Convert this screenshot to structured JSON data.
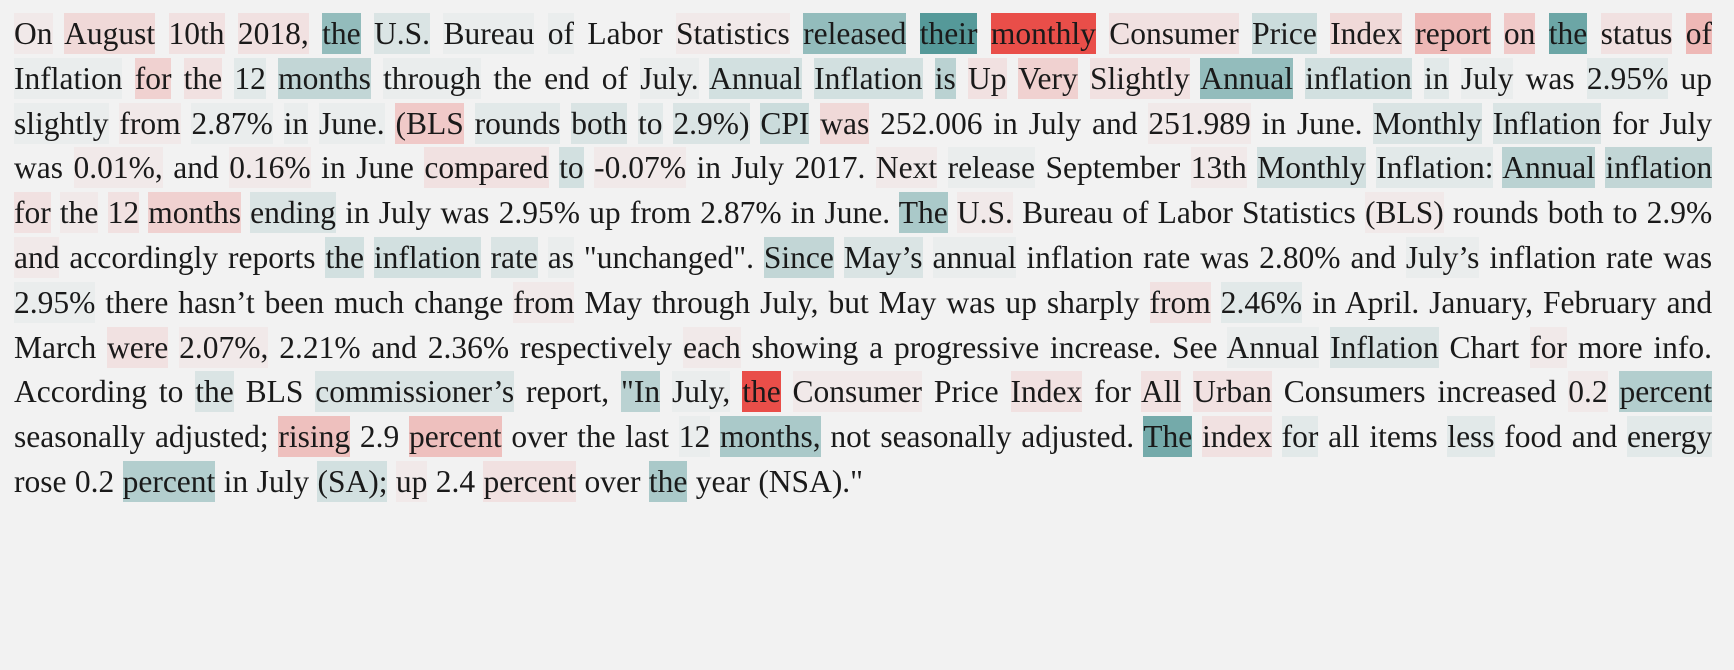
{
  "document": {
    "tokens": [
      {
        "t": "On",
        "w": -0.05
      },
      {
        "t": "August",
        "w": -0.15
      },
      {
        "t": "10th",
        "w": -0.1
      },
      {
        "t": "2018,",
        "w": -0.1
      },
      {
        "t": "the",
        "w": 0.6
      },
      {
        "t": "U.S.",
        "w": 0.15
      },
      {
        "t": "Bureau",
        "w": 0.05
      },
      {
        "t": "of",
        "w": 0.05
      },
      {
        "t": "Labor",
        "w": 0
      },
      {
        "t": "Statistics",
        "w": -0.05
      },
      {
        "t": "released",
        "w": 0.6
      },
      {
        "t": "their",
        "w": 1.0
      },
      {
        "t": "monthly",
        "w": -1.0
      },
      {
        "t": "Consumer",
        "w": -0.1
      },
      {
        "t": "Price",
        "w": 0.25
      },
      {
        "t": "Index",
        "w": -0.15
      },
      {
        "t": "report",
        "w": -0.35
      },
      {
        "t": "on",
        "w": -0.25
      },
      {
        "t": "the",
        "w": 0.85
      },
      {
        "t": "status",
        "w": -0.1
      },
      {
        "t": "of",
        "w": -0.35
      },
      {
        "t": "Inflation",
        "w": 0.05
      },
      {
        "t": "for",
        "w": -0.2
      },
      {
        "t": "the",
        "w": -0.1
      },
      {
        "t": "12",
        "w": 0.1
      },
      {
        "t": "months",
        "w": 0.3
      },
      {
        "t": "through",
        "w": 0.05
      },
      {
        "t": "the",
        "w": 0
      },
      {
        "t": "end",
        "w": 0
      },
      {
        "t": "of",
        "w": 0
      },
      {
        "t": "July.",
        "w": 0.05
      },
      {
        "t": "Annual",
        "w": 0.2
      },
      {
        "t": "Inflation",
        "w": 0.2
      },
      {
        "t": "is",
        "w": 0.35
      },
      {
        "t": "Up",
        "w": -0.1
      },
      {
        "t": "Very",
        "w": -0.2
      },
      {
        "t": "Slightly",
        "w": -0.1
      },
      {
        "t": "Annual",
        "w": 0.6
      },
      {
        "t": "inflation",
        "w": 0.2
      },
      {
        "t": "in",
        "w": 0.1
      },
      {
        "t": "July",
        "w": 0.05
      },
      {
        "t": "was",
        "w": 0
      },
      {
        "t": "2.95%",
        "w": 0.1
      },
      {
        "t": "up",
        "w": 0
      },
      {
        "t": "slightly",
        "w": 0.05
      },
      {
        "t": "from",
        "w": -0.05
      },
      {
        "t": "2.87%",
        "w": 0.05
      },
      {
        "t": "in",
        "w": 0.05
      },
      {
        "t": "June.",
        "w": 0.05
      },
      {
        "t": "(BLS",
        "w": -0.25
      },
      {
        "t": "rounds",
        "w": 0.1
      },
      {
        "t": "both",
        "w": 0.15
      },
      {
        "t": "to",
        "w": 0.1
      },
      {
        "t": "2.9%)",
        "w": 0.15
      },
      {
        "t": "CPI",
        "w": 0.25
      },
      {
        "t": "was",
        "w": -0.15
      },
      {
        "t": "252.006",
        "w": 0
      },
      {
        "t": "in",
        "w": 0
      },
      {
        "t": "July",
        "w": 0
      },
      {
        "t": "and",
        "w": 0
      },
      {
        "t": "251.989",
        "w": -0.05
      },
      {
        "t": "in",
        "w": 0
      },
      {
        "t": "June.",
        "w": 0
      },
      {
        "t": "Monthly",
        "w": 0.15
      },
      {
        "t": "Inflation",
        "w": 0.15
      },
      {
        "t": "for",
        "w": 0
      },
      {
        "t": "July",
        "w": 0
      },
      {
        "t": "was",
        "w": 0
      },
      {
        "t": "0.01%,",
        "w": -0.05
      },
      {
        "t": "and",
        "w": 0
      },
      {
        "t": "0.16%",
        "w": -0.05
      },
      {
        "t": "in",
        "w": 0
      },
      {
        "t": "June",
        "w": 0
      },
      {
        "t": "compared",
        "w": -0.1
      },
      {
        "t": "to",
        "w": 0.2
      },
      {
        "t": "-0.07%",
        "w": -0.05
      },
      {
        "t": "in",
        "w": 0
      },
      {
        "t": "July",
        "w": 0
      },
      {
        "t": "2017.",
        "w": 0
      },
      {
        "t": "Next",
        "w": -0.05
      },
      {
        "t": "release",
        "w": 0.05
      },
      {
        "t": "September",
        "w": 0
      },
      {
        "t": "13th",
        "w": -0.05
      },
      {
        "t": "Monthly",
        "w": 0.2
      },
      {
        "t": "Inflation:",
        "w": 0.1
      },
      {
        "t": "Annual",
        "w": 0.35
      },
      {
        "t": "inflation",
        "w": 0.3
      },
      {
        "t": "for",
        "w": -0.1
      },
      {
        "t": "the",
        "w": -0.05
      },
      {
        "t": "12",
        "w": -0.1
      },
      {
        "t": "months",
        "w": -0.2
      },
      {
        "t": "ending",
        "w": 0.15
      },
      {
        "t": "in",
        "w": 0
      },
      {
        "t": "July",
        "w": 0
      },
      {
        "t": "was",
        "w": 0
      },
      {
        "t": "2.95%",
        "w": 0
      },
      {
        "t": "up",
        "w": 0
      },
      {
        "t": "from",
        "w": 0
      },
      {
        "t": "2.87%",
        "w": 0
      },
      {
        "t": "in",
        "w": 0
      },
      {
        "t": "June.",
        "w": 0
      },
      {
        "t": "The",
        "w": 0.45
      },
      {
        "t": "U.S.",
        "w": -0.05
      },
      {
        "t": "Bureau",
        "w": 0
      },
      {
        "t": "of",
        "w": 0
      },
      {
        "t": "Labor",
        "w": 0
      },
      {
        "t": "Statistics",
        "w": 0
      },
      {
        "t": "(BLS)",
        "w": -0.05
      },
      {
        "t": "rounds",
        "w": 0
      },
      {
        "t": "both",
        "w": 0
      },
      {
        "t": "to",
        "w": 0
      },
      {
        "t": "2.9%",
        "w": 0
      },
      {
        "t": "and",
        "w": -0.05
      },
      {
        "t": "accordingly",
        "w": 0
      },
      {
        "t": "reports",
        "w": 0
      },
      {
        "t": "the",
        "w": 0.2
      },
      {
        "t": "inflation",
        "w": 0.2
      },
      {
        "t": "rate",
        "w": 0.15
      },
      {
        "t": "as",
        "w": 0.05
      },
      {
        "t": "\"unchanged\".",
        "w": 0
      },
      {
        "t": "Since",
        "w": 0.3
      },
      {
        "t": "May’s",
        "w": 0.15
      },
      {
        "t": "annual",
        "w": 0.05
      },
      {
        "t": "inflation",
        "w": 0
      },
      {
        "t": "rate",
        "w": 0
      },
      {
        "t": "was",
        "w": 0
      },
      {
        "t": "2.80%",
        "w": 0
      },
      {
        "t": "and",
        "w": 0
      },
      {
        "t": "July’s",
        "w": 0.05
      },
      {
        "t": "inflation",
        "w": 0
      },
      {
        "t": "rate",
        "w": 0
      },
      {
        "t": "was",
        "w": 0
      },
      {
        "t": "2.95%",
        "w": 0.05
      },
      {
        "t": "there",
        "w": 0
      },
      {
        "t": "hasn’t",
        "w": 0
      },
      {
        "t": "been",
        "w": 0
      },
      {
        "t": "much",
        "w": 0
      },
      {
        "t": "change",
        "w": 0
      },
      {
        "t": "from",
        "w": -0.05
      },
      {
        "t": "May",
        "w": 0
      },
      {
        "t": "through",
        "w": 0
      },
      {
        "t": "July,",
        "w": 0
      },
      {
        "t": "but",
        "w": 0
      },
      {
        "t": "May",
        "w": 0
      },
      {
        "t": "was",
        "w": 0
      },
      {
        "t": "up",
        "w": 0
      },
      {
        "t": "sharply",
        "w": 0
      },
      {
        "t": "from",
        "w": -0.1
      },
      {
        "t": "2.46%",
        "w": 0.1
      },
      {
        "t": "in",
        "w": 0
      },
      {
        "t": "April.",
        "w": 0
      },
      {
        "t": "January,",
        "w": 0
      },
      {
        "t": "February",
        "w": 0
      },
      {
        "t": "and",
        "w": 0
      },
      {
        "t": "March",
        "w": 0
      },
      {
        "t": "were",
        "w": -0.1
      },
      {
        "t": "2.07%,",
        "w": -0.05
      },
      {
        "t": "2.21%",
        "w": 0
      },
      {
        "t": "and",
        "w": 0
      },
      {
        "t": "2.36%",
        "w": 0
      },
      {
        "t": "respectively",
        "w": 0
      },
      {
        "t": "each",
        "w": -0.05
      },
      {
        "t": "showing",
        "w": 0
      },
      {
        "t": "a",
        "w": 0
      },
      {
        "t": "progressive",
        "w": 0
      },
      {
        "t": "increase.",
        "w": 0
      },
      {
        "t": "See",
        "w": 0
      },
      {
        "t": "Annual",
        "w": 0.05
      },
      {
        "t": "Inflation",
        "w": 0.15
      },
      {
        "t": "Chart",
        "w": 0
      },
      {
        "t": "for",
        "w": -0.05
      },
      {
        "t": "more",
        "w": 0
      },
      {
        "t": "info.",
        "w": 0
      },
      {
        "t": "According",
        "w": 0
      },
      {
        "t": "to",
        "w": 0
      },
      {
        "t": "the",
        "w": 0.15
      },
      {
        "t": "BLS",
        "w": 0
      },
      {
        "t": "commissioner’s",
        "w": 0.15
      },
      {
        "t": "report,",
        "w": 0
      },
      {
        "t": "\"In",
        "w": 0.35
      },
      {
        "t": "July,",
        "w": 0.05
      },
      {
        "t": "the",
        "w": -1.0
      },
      {
        "t": "Consumer",
        "w": -0.05
      },
      {
        "t": "Price",
        "w": 0
      },
      {
        "t": "Index",
        "w": -0.1
      },
      {
        "t": "for",
        "w": 0
      },
      {
        "t": "All",
        "w": -0.1
      },
      {
        "t": "Urban",
        "w": -0.1
      },
      {
        "t": "Consumers",
        "w": 0
      },
      {
        "t": "increased",
        "w": 0
      },
      {
        "t": "0.2",
        "w": -0.05
      },
      {
        "t": "percent",
        "w": 0.4
      },
      {
        "t": "seasonally",
        "w": 0
      },
      {
        "t": "adjusted;",
        "w": 0
      },
      {
        "t": "rising",
        "w": -0.3
      },
      {
        "t": "2.9",
        "w": 0
      },
      {
        "t": "percent",
        "w": -0.3
      },
      {
        "t": "over",
        "w": 0
      },
      {
        "t": "the",
        "w": 0
      },
      {
        "t": "last",
        "w": 0
      },
      {
        "t": "12",
        "w": 0.05
      },
      {
        "t": "months,",
        "w": 0.45
      },
      {
        "t": "not",
        "w": 0
      },
      {
        "t": "seasonally",
        "w": 0
      },
      {
        "t": "adjusted.",
        "w": 0
      },
      {
        "t": "The",
        "w": 0.8
      },
      {
        "t": "index",
        "w": -0.1
      },
      {
        "t": "for",
        "w": 0.1
      },
      {
        "t": "all",
        "w": 0
      },
      {
        "t": "items",
        "w": 0
      },
      {
        "t": "less",
        "w": 0.1
      },
      {
        "t": "food",
        "w": 0
      },
      {
        "t": "and",
        "w": 0
      },
      {
        "t": "energy",
        "w": 0.1
      },
      {
        "t": "rose",
        "w": 0
      },
      {
        "t": "0.2",
        "w": 0
      },
      {
        "t": "percent",
        "w": 0.4
      },
      {
        "t": "in",
        "w": 0
      },
      {
        "t": "July",
        "w": 0
      },
      {
        "t": "(SA);",
        "w": 0.2
      },
      {
        "t": "up",
        "w": -0.05
      },
      {
        "t": "2.4",
        "w": 0
      },
      {
        "t": "percent",
        "w": -0.1
      },
      {
        "t": "over",
        "w": 0
      },
      {
        "t": "the",
        "w": 0.45
      },
      {
        "t": "year",
        "w": 0
      },
      {
        "t": "(NSA).\"",
        "w": 0
      }
    ]
  },
  "colors": {
    "positive": "#4c9393",
    "negative": "#e8453f",
    "background": "#f2f2f2",
    "text": "#1a1a1a"
  }
}
